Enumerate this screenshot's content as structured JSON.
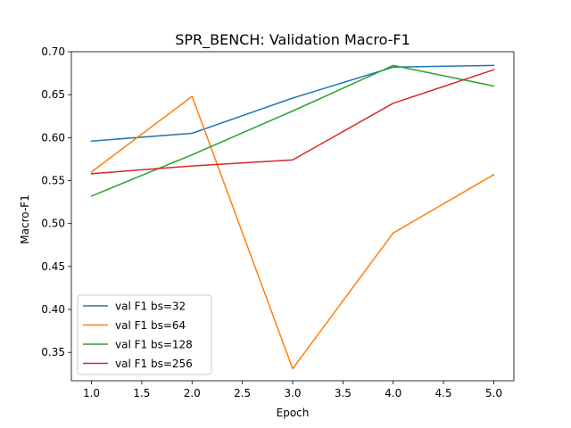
{
  "chart_data": {
    "type": "line",
    "title": "SPR_BENCH: Validation Macro-F1",
    "xlabel": "Epoch",
    "ylabel": "Macro-F1",
    "xlim": [
      0.8,
      5.2
    ],
    "ylim": [
      0.317,
      0.7
    ],
    "xticks": [
      "1.0",
      "1.5",
      "2.0",
      "2.5",
      "3.0",
      "3.5",
      "4.0",
      "4.5",
      "5.0"
    ],
    "yticks": [
      "0.35",
      "0.40",
      "0.45",
      "0.50",
      "0.55",
      "0.60",
      "0.65",
      "0.70"
    ],
    "grid": false,
    "legend_position": "lower-left",
    "x": [
      1,
      2,
      3,
      4,
      5
    ],
    "series": [
      {
        "name": "val F1 bs=32",
        "color": "#1f77b4",
        "values": [
          0.596,
          0.605,
          0.646,
          0.682,
          0.684
        ]
      },
      {
        "name": "val F1 bs=64",
        "color": "#ff7f0e",
        "values": [
          0.56,
          0.648,
          0.331,
          0.489,
          0.557
        ]
      },
      {
        "name": "val F1 bs=128",
        "color": "#2ca02c",
        "values": [
          0.532,
          0.58,
          0.631,
          0.684,
          0.66
        ]
      },
      {
        "name": "val F1 bs=256",
        "color": "#d62728",
        "values": [
          0.558,
          0.567,
          0.574,
          0.64,
          0.679
        ]
      }
    ]
  }
}
